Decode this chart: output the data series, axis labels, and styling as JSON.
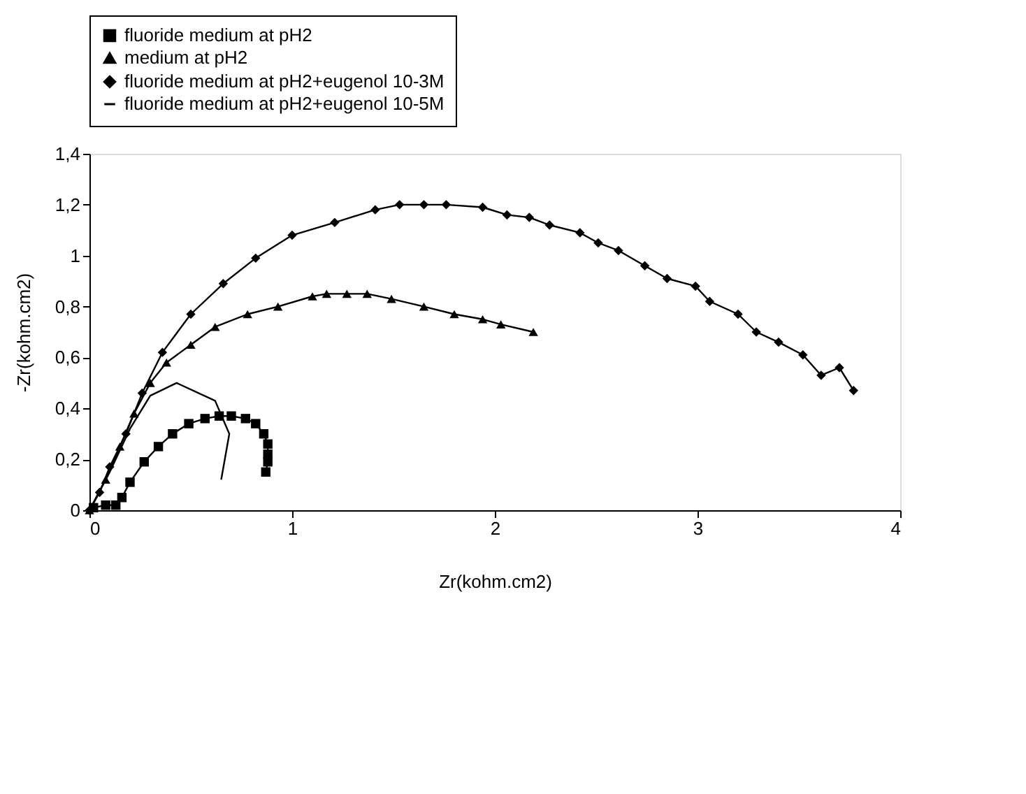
{
  "chart_data": {
    "type": "line",
    "xlabel": "Zr(kohm.cm2)",
    "ylabel": "-Zr(kohm.cm2)",
    "xlim": [
      0,
      4
    ],
    "xticks": [
      0,
      1,
      2,
      3,
      4
    ],
    "ylim": [
      0,
      1.4
    ],
    "yticks": [
      0,
      {
        "value": 0.2,
        "label": "0,2"
      },
      {
        "value": 0.4,
        "label": "0,4"
      },
      {
        "value": 0.6,
        "label": "0,6"
      },
      {
        "value": 0.8,
        "label": "0,8"
      },
      1,
      {
        "value": 1.2,
        "label": "1,2"
      },
      {
        "value": 1.4,
        "label": "1,4"
      }
    ],
    "grid": false,
    "legend": "top",
    "line_style": "solid",
    "series": [
      {
        "name": "fluoride medium at pH2",
        "color": "#000000",
        "marker": "square",
        "x": [
          0.02,
          0.08,
          0.13,
          0.16,
          0.2,
          0.27,
          0.34,
          0.41,
          0.49,
          0.57,
          0.64,
          0.7,
          0.77,
          0.82,
          0.86,
          0.88,
          0.88,
          0.88,
          0.87
        ],
        "values": [
          0.01,
          0.02,
          0.02,
          0.05,
          0.11,
          0.19,
          0.25,
          0.3,
          0.34,
          0.36,
          0.37,
          0.37,
          0.36,
          0.34,
          0.3,
          0.26,
          0.22,
          0.19,
          0.15
        ]
      },
      {
        "name": "medium at pH2",
        "color": "#000000",
        "marker": "triangle",
        "x": [
          0,
          0.08,
          0.15,
          0.22,
          0.3,
          0.38,
          0.5,
          0.62,
          0.78,
          0.93,
          1.1,
          1.17,
          1.27,
          1.37,
          1.49,
          1.65,
          1.8,
          1.94,
          2.03,
          2.19
        ],
        "values": [
          0,
          0.12,
          0.25,
          0.38,
          0.5,
          0.58,
          0.65,
          0.72,
          0.77,
          0.8,
          0.84,
          0.85,
          0.85,
          0.85,
          0.83,
          0.8,
          0.77,
          0.75,
          0.73,
          0.7
        ]
      },
      {
        "name": "fluoride medium at pH2+eugenol 10-3M",
        "color": "#000000",
        "marker": "diamond",
        "x": [
          0,
          0.05,
          0.1,
          0.18,
          0.26,
          0.36,
          0.5,
          0.66,
          0.82,
          1.0,
          1.21,
          1.41,
          1.53,
          1.65,
          1.76,
          1.94,
          2.06,
          2.17,
          2.27,
          2.42,
          2.51,
          2.61,
          2.74,
          2.85,
          2.99,
          3.06,
          3.2,
          3.29,
          3.4,
          3.52,
          3.61,
          3.7,
          3.77
        ],
        "values": [
          0,
          0.07,
          0.17,
          0.3,
          0.46,
          0.62,
          0.77,
          0.89,
          0.99,
          1.08,
          1.13,
          1.18,
          1.2,
          1.2,
          1.2,
          1.19,
          1.16,
          1.15,
          1.12,
          1.09,
          1.05,
          1.02,
          0.96,
          0.91,
          0.88,
          0.82,
          0.77,
          0.7,
          0.66,
          0.61,
          0.53,
          0.56,
          0.47
        ]
      },
      {
        "name": "fluoride medium at pH2+eugenol 10-5M",
        "color": "#000000",
        "marker": "none",
        "x": [
          0,
          0.1,
          0.2,
          0.3,
          0.43,
          0.62,
          0.69,
          0.67,
          0.65
        ],
        "values": [
          0,
          0.15,
          0.32,
          0.45,
          0.5,
          0.43,
          0.3,
          0.21,
          0.12
        ]
      }
    ]
  }
}
